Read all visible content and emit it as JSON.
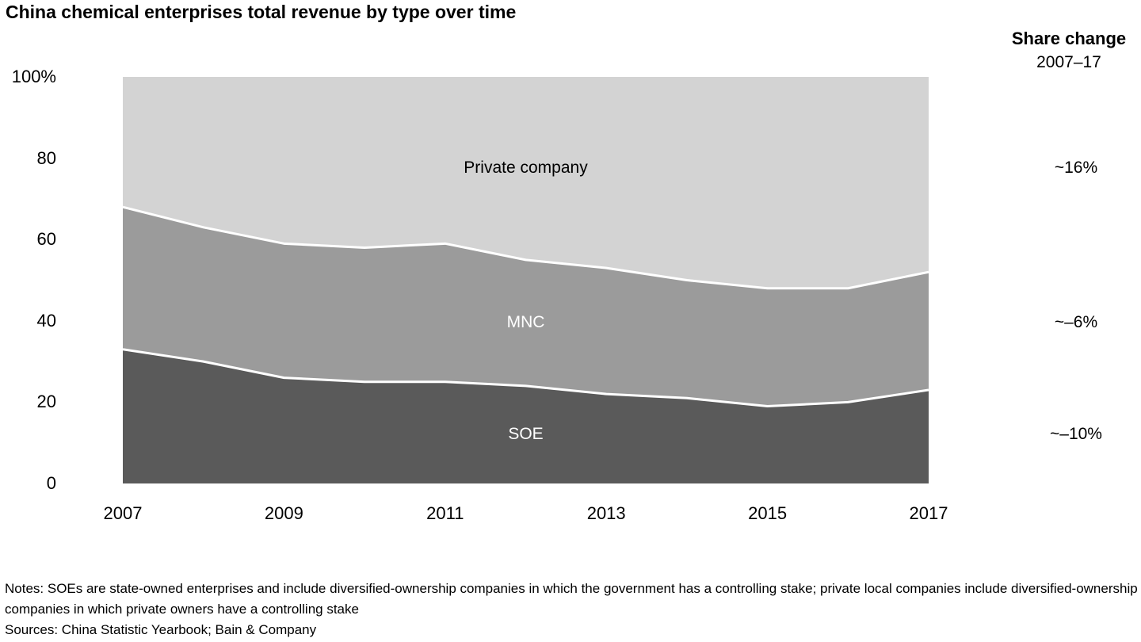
{
  "title": "China chemical enterprises total revenue by type over time",
  "share_change": {
    "heading": "Share change",
    "subheading": "2007–17",
    "items": [
      {
        "series": "Private company",
        "label": "~16%"
      },
      {
        "series": "MNC",
        "label": "~–6%"
      },
      {
        "series": "SOE",
        "label": "~–10%"
      }
    ]
  },
  "notes": "Notes: SOEs are state-owned enterprises and include diversified-ownership companies in which the government has a controlling stake; private local companies include diversified-ownership companies in which private owners have a controlling stake",
  "sources": "Sources: China Statistic Yearbook; Bain & Company",
  "chart_data": {
    "type": "area",
    "stacked": true,
    "title": "China chemical enterprises total revenue by type over time",
    "x": [
      2007,
      2008,
      2009,
      2010,
      2011,
      2012,
      2013,
      2014,
      2015,
      2016,
      2017
    ],
    "series": [
      {
        "name": "SOE",
        "color": "#5a5a5a",
        "label_color": "#ffffff",
        "values": [
          33,
          30,
          26,
          25,
          25,
          24,
          22,
          21,
          19,
          20,
          23
        ]
      },
      {
        "name": "MNC",
        "color": "#9b9b9b",
        "label_color": "#ffffff",
        "values": [
          35,
          33,
          33,
          33,
          34,
          31,
          31,
          29,
          29,
          28,
          29
        ]
      },
      {
        "name": "Private company",
        "color": "#d3d3d3",
        "label_color": "#000000",
        "values": [
          32,
          37,
          41,
          42,
          41,
          45,
          47,
          50,
          52,
          52,
          48
        ]
      }
    ],
    "ylim": [
      0,
      100
    ],
    "y_ticks": [
      {
        "label": "100%",
        "value": 100
      },
      {
        "label": "80",
        "value": 80
      },
      {
        "label": "60",
        "value": 60
      },
      {
        "label": "40",
        "value": 40
      },
      {
        "label": "20",
        "value": 20
      },
      {
        "label": "0",
        "value": 0
      }
    ],
    "x_ticks": [
      {
        "label": "2007",
        "value": 2007
      },
      {
        "label": "2009",
        "value": 2009
      },
      {
        "label": "2011",
        "value": 2011
      },
      {
        "label": "2013",
        "value": 2013
      },
      {
        "label": "2015",
        "value": 2015
      },
      {
        "label": "2017",
        "value": 2017
      }
    ],
    "boundary_color": "#ffffff",
    "grid": false,
    "legend": "labels-inside-areas"
  }
}
